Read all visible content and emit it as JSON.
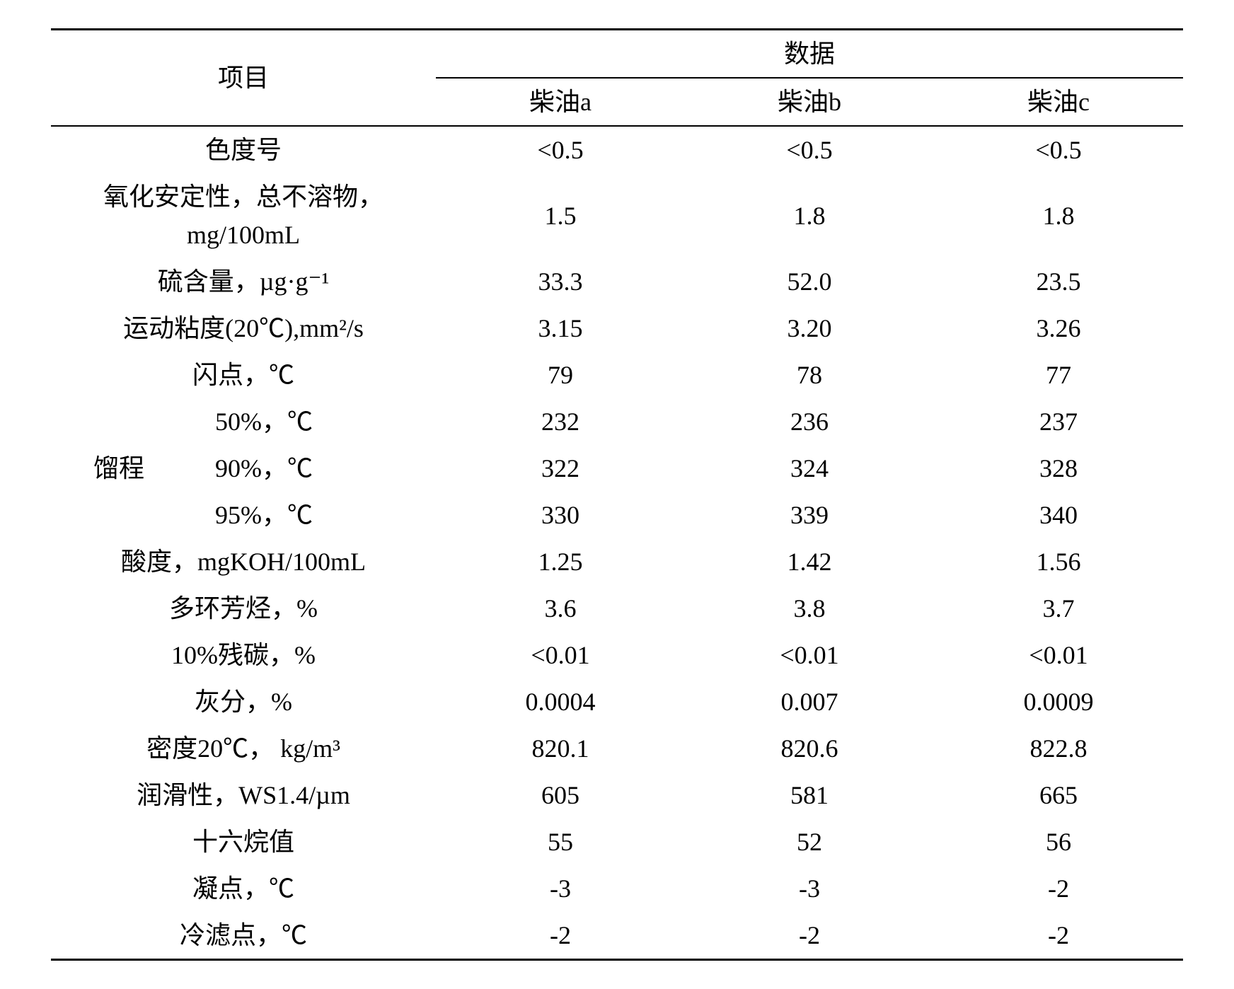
{
  "table": {
    "header": {
      "item": "项目",
      "data": "数据",
      "sub_a": "柴油a",
      "sub_b": "柴油b",
      "sub_c": "柴油c"
    },
    "rows": [
      {
        "label": "色度号",
        "a": "<0.5",
        "b": "<0.5",
        "c": "<0.5"
      },
      {
        "label": "氧化安定性，总不溶物，<br>mg/100mL",
        "a": "1.5",
        "b": "1.8",
        "c": "1.8"
      },
      {
        "label": "硫含量，µg·g⁻¹",
        "a": "33.3",
        "b": "52.0",
        "c": "23.5"
      },
      {
        "label": "运动粘度(20℃),mm²/s",
        "a": "3.15",
        "b": "3.20",
        "c": "3.26"
      },
      {
        "label": "闪点，℃",
        "a": "79",
        "b": "78",
        "c": "77"
      },
      {
        "group": "馏程",
        "sub": "50%，℃",
        "a": "232",
        "b": "236",
        "c": "237"
      },
      {
        "group": "",
        "sub": "90%，℃",
        "a": "322",
        "b": "324",
        "c": "328"
      },
      {
        "group": "",
        "sub": "95%，℃",
        "a": "330",
        "b": "339",
        "c": "340"
      },
      {
        "label": "酸度，mgKOH/100mL",
        "a": "1.25",
        "b": "1.42",
        "c": "1.56"
      },
      {
        "label": "多环芳烃，%",
        "a": "3.6",
        "b": "3.8",
        "c": "3.7"
      },
      {
        "label": "10%残碳，%",
        "a": "<0.01",
        "b": "<0.01",
        "c": "<0.01"
      },
      {
        "label": "灰分，%",
        "a": "0.0004",
        "b": "0.007",
        "c": "0.0009"
      },
      {
        "label": "密度20℃，  kg/m³",
        "a": "820.1",
        "b": "820.6",
        "c": "822.8"
      },
      {
        "label": "润滑性，WS1.4/µm",
        "a": "605",
        "b": "581",
        "c": "665"
      },
      {
        "label": "十六烷值",
        "a": "55",
        "b": "52",
        "c": "56"
      },
      {
        "label": "凝点，℃",
        "a": "-3",
        "b": "-3",
        "c": "-2"
      },
      {
        "label": "冷滤点，℃",
        "a": "-2",
        "b": "-2",
        "c": "-2"
      }
    ],
    "group_label": "馏程"
  },
  "style": {
    "font_family": "Times New Roman, SimSun, serif",
    "font_size_pt": 36,
    "text_color": "#000000",
    "background_color": "#ffffff",
    "rule_color": "#000000",
    "top_rule_width": 3,
    "mid_rule_width": 2,
    "bottom_rule_width": 3,
    "col_widths_pct": [
      34,
      22,
      22,
      22
    ]
  }
}
